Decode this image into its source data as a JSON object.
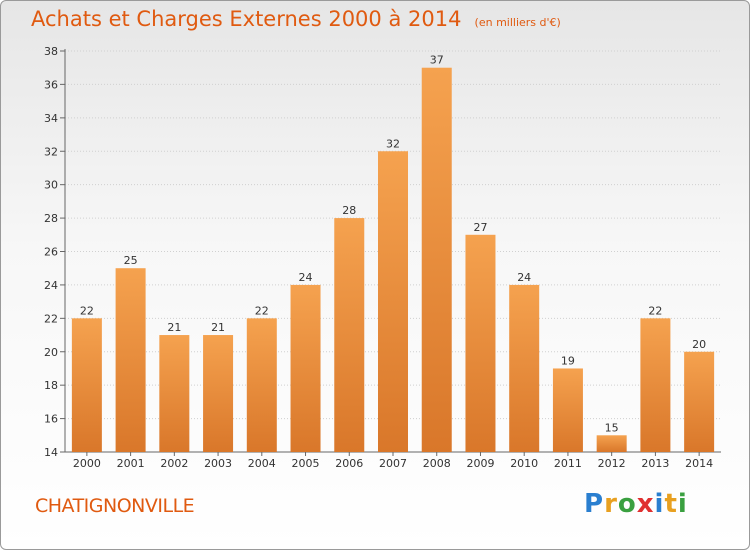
{
  "header": {
    "title": "Achats et Charges Externes 2000 à 2014",
    "unit": "(en milliers d'€)"
  },
  "footer": {
    "commune": "CHATIGNONVILLE",
    "logo_letters": [
      "P",
      "r",
      "o",
      "x",
      "i",
      "t",
      "i"
    ],
    "logo_colors": [
      "#2a7fd0",
      "#e8a020",
      "#3aa040",
      "#e03030",
      "#2a7fd0",
      "#e8a020",
      "#3aa040"
    ]
  },
  "colors": {
    "bar_light": "#f5a24f",
    "bar_dark": "#d9772a",
    "text": "#333333",
    "accent": "#e05a10"
  },
  "chart_data": {
    "type": "bar",
    "title": "Achats et Charges Externes 2000 à 2014",
    "subtitle": "(en milliers d'€)",
    "categories": [
      "2000",
      "2001",
      "2002",
      "2003",
      "2004",
      "2005",
      "2006",
      "2007",
      "2008",
      "2009",
      "2010",
      "2011",
      "2012",
      "2013",
      "2014"
    ],
    "values": [
      22,
      25,
      21,
      21,
      22,
      24,
      28,
      32,
      37,
      27,
      24,
      19,
      15,
      22,
      20
    ],
    "ylim": [
      14,
      38
    ],
    "yticks": [
      14,
      16,
      18,
      20,
      22,
      24,
      26,
      28,
      30,
      32,
      34,
      36,
      38
    ],
    "grid": true,
    "legend": "none",
    "xlabel": "",
    "ylabel": ""
  }
}
